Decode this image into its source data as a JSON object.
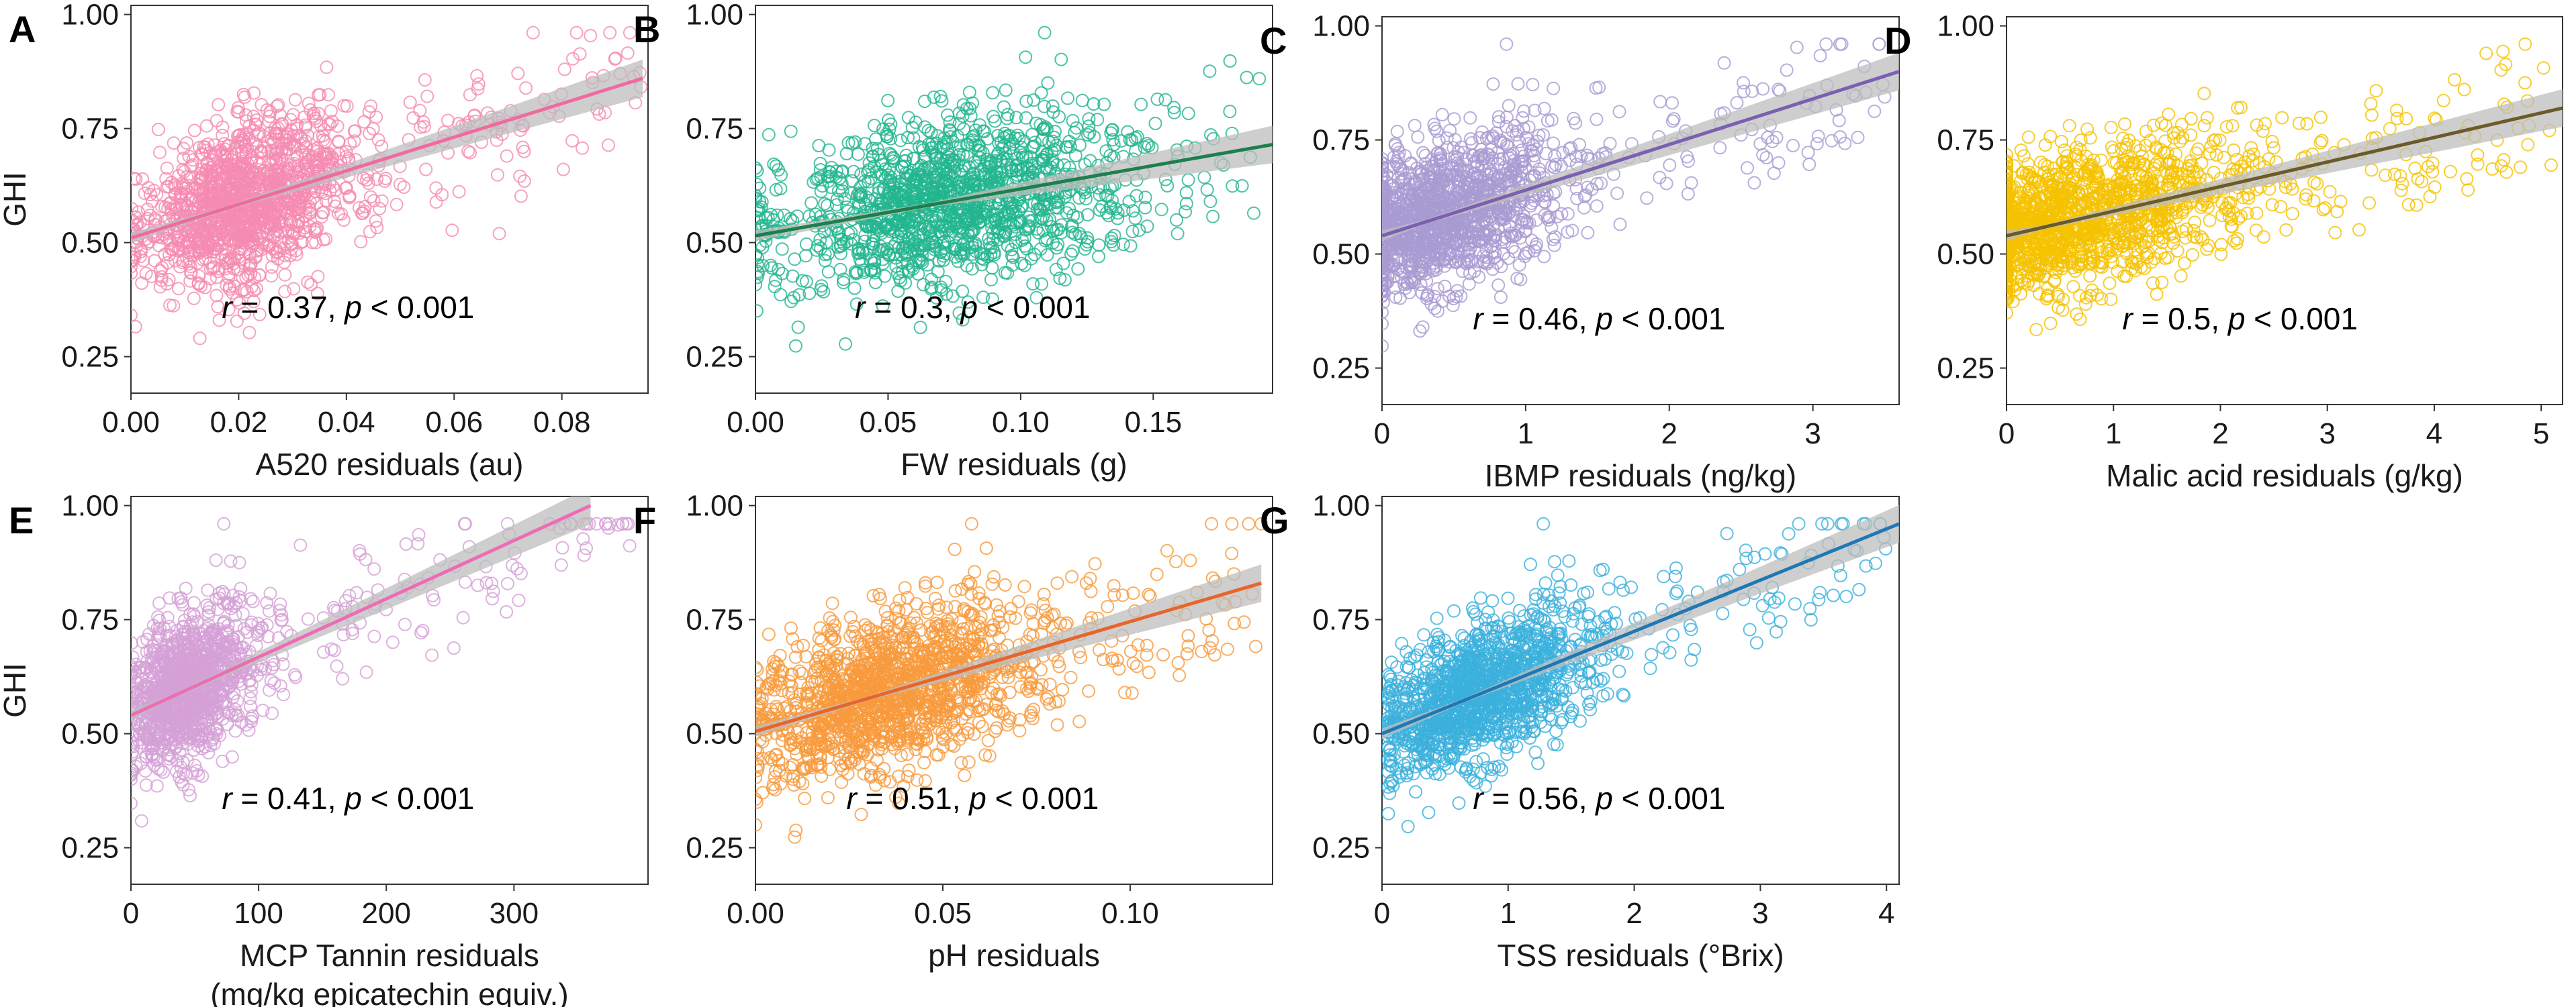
{
  "chart_data": [
    {
      "panel": "A",
      "type": "scatter",
      "color": "#f58bb0",
      "line_color": "#f06aa0",
      "xlabel": "A520 residuals (au)",
      "ylabel": "GHI",
      "xlim": [
        0,
        0.096
      ],
      "ylim": [
        0.17,
        1.02
      ],
      "xticks": [
        0,
        0.02,
        0.04,
        0.06,
        0.08
      ],
      "xtick_labels": [
        "0.00",
        "0.02",
        "0.04",
        "0.06",
        "0.08"
      ],
      "yticks": [
        0.25,
        0.5,
        0.75,
        1.0
      ],
      "ytick_labels": [
        "0.25",
        "0.50",
        "0.75",
        "1.00"
      ],
      "fit": {
        "x0": 0,
        "y0": 0.51,
        "x1": 0.095,
        "y1": 0.86
      },
      "annotation": {
        "r": "0.37",
        "p": "0.001"
      },
      "cloud": {
        "x_mean": 0.018,
        "x_sd": 0.011,
        "x_min": 0.0,
        "x_max": 0.095,
        "y_sd": 0.085,
        "n": 1400
      }
    },
    {
      "panel": "B",
      "type": "scatter",
      "color": "#22b58f",
      "line_color": "#1e7f4c",
      "xlabel": "FW residuals (g)",
      "ylabel": "",
      "xlim": [
        0,
        0.195
      ],
      "ylim": [
        0.17,
        1.02
      ],
      "xticks": [
        0,
        0.05,
        0.1,
        0.15
      ],
      "xtick_labels": [
        "0.00",
        "0.05",
        "0.10",
        "0.15"
      ],
      "yticks": [
        0.25,
        0.5,
        0.75,
        1.0
      ],
      "ytick_labels": [
        "0.25",
        "0.50",
        "0.75",
        "1.00"
      ],
      "fit": {
        "x0": 0,
        "y0": 0.515,
        "x1": 0.195,
        "y1": 0.715
      },
      "annotation": {
        "r": "0.3",
        "p": "0.001"
      },
      "cloud": {
        "x_mean": 0.065,
        "x_sd": 0.035,
        "x_min": 0.0,
        "x_max": 0.19,
        "y_sd": 0.09,
        "n": 1400
      }
    },
    {
      "panel": "C",
      "type": "scatter",
      "color": "#a79bd2",
      "line_color": "#7b5fb0",
      "xlabel": "IBMP residuals (ng/kg)",
      "ylabel": "",
      "xlim": [
        0,
        3.6
      ],
      "ylim": [
        0.17,
        1.02
      ],
      "xticks": [
        0,
        1,
        2,
        3
      ],
      "xtick_labels": [
        "0",
        "1",
        "2",
        "3"
      ],
      "yticks": [
        0.25,
        0.5,
        0.75,
        1.0
      ],
      "ytick_labels": [
        "0.25",
        "0.50",
        "0.75",
        "1.00"
      ],
      "fit": {
        "x0": 0,
        "y0": 0.54,
        "x1": 3.6,
        "y1": 0.9
      },
      "annotation": {
        "r": "0.46",
        "p": "0.001"
      },
      "cloud": {
        "x_mean": 0.3,
        "x_sd": 0.45,
        "x_min": 0.0,
        "x_max": 3.55,
        "y_sd": 0.08,
        "n": 1400
      }
    },
    {
      "panel": "D",
      "type": "scatter",
      "color": "#f5c200",
      "line_color": "#6b5a2a",
      "xlabel": "Malic acid residuals (g/kg)",
      "ylabel": "",
      "xlim": [
        0,
        5.2
      ],
      "ylim": [
        0.17,
        1.02
      ],
      "xticks": [
        0,
        1,
        2,
        3,
        4,
        5
      ],
      "xtick_labels": [
        "0",
        "1",
        "2",
        "3",
        "4",
        "5"
      ],
      "yticks": [
        0.25,
        0.5,
        0.75,
        1.0
      ],
      "ytick_labels": [
        "0.25",
        "0.50",
        "0.75",
        "1.00"
      ],
      "fit": {
        "x0": 0,
        "y0": 0.54,
        "x1": 5.2,
        "y1": 0.82
      },
      "annotation": {
        "r": "0.5",
        "p": "0.001"
      },
      "cloud": {
        "x_mean": 0.35,
        "x_sd": 0.9,
        "x_min": 0.0,
        "x_max": 5.15,
        "y_sd": 0.075,
        "n": 1500
      }
    },
    {
      "panel": "E",
      "type": "scatter",
      "color": "#d4a0d6",
      "line_color": "#ee6bb5",
      "xlabel": "MCP Tannin residuals",
      "xlabel2": "(mg/kg epicatechin equiv.)",
      "ylabel": "GHI",
      "xlim": [
        0,
        405
      ],
      "ylim": [
        0.17,
        1.02
      ],
      "xticks": [
        0,
        100,
        200,
        300
      ],
      "xtick_labels": [
        "0",
        "100",
        "200",
        "300"
      ],
      "yticks": [
        0.25,
        0.5,
        0.75,
        1.0
      ],
      "ytick_labels": [
        "0.25",
        "0.50",
        "0.75",
        "1.00"
      ],
      "fit": {
        "x0": 0,
        "y0": 0.54,
        "x1": 360,
        "y1": 1.0
      },
      "annotation": {
        "r": "0.41",
        "p": "0.001"
      },
      "cloud": {
        "x_mean": 35,
        "x_sd": 30,
        "x_min": 0,
        "x_max": 395,
        "y_sd": 0.08,
        "n": 1200
      }
    },
    {
      "panel": "F",
      "type": "scatter",
      "color": "#f89a3c",
      "line_color": "#e8652a",
      "xlabel": "pH residuals",
      "ylabel": "",
      "xlim": [
        0,
        0.138
      ],
      "ylim": [
        0.17,
        1.02
      ],
      "xticks": [
        0,
        0.05,
        0.1
      ],
      "xtick_labels": [
        "0.00",
        "0.05",
        "0.10"
      ],
      "yticks": [
        0.25,
        0.5,
        0.75,
        1.0
      ],
      "ytick_labels": [
        "0.25",
        "0.50",
        "0.75",
        "1.00"
      ],
      "fit": {
        "x0": 0,
        "y0": 0.505,
        "x1": 0.135,
        "y1": 0.83
      },
      "annotation": {
        "r": "0.51",
        "p": "0.001"
      },
      "cloud": {
        "x_mean": 0.03,
        "x_sd": 0.022,
        "x_min": 0.0,
        "x_max": 0.135,
        "y_sd": 0.085,
        "n": 1500
      }
    },
    {
      "panel": "G",
      "type": "scatter",
      "color": "#3bb0dc",
      "line_color": "#1f78b4",
      "xlabel": "TSS residuals (°Brix)",
      "ylabel": "",
      "xlim": [
        0,
        4.1
      ],
      "ylim": [
        0.17,
        1.02
      ],
      "xticks": [
        0,
        1,
        2,
        3,
        4
      ],
      "xtick_labels": [
        "0",
        "1",
        "2",
        "3",
        "4"
      ],
      "yticks": [
        0.25,
        0.5,
        0.75,
        1.0
      ],
      "ytick_labels": [
        "0.25",
        "0.50",
        "0.75",
        "1.00"
      ],
      "fit": {
        "x0": 0,
        "y0": 0.5,
        "x1": 4.1,
        "y1": 0.96
      },
      "annotation": {
        "r": "0.56",
        "p": "0.001"
      },
      "cloud": {
        "x_mean": 0.65,
        "x_sd": 0.5,
        "x_min": 0.05,
        "x_max": 4.05,
        "y_sd": 0.075,
        "n": 1400
      }
    }
  ]
}
